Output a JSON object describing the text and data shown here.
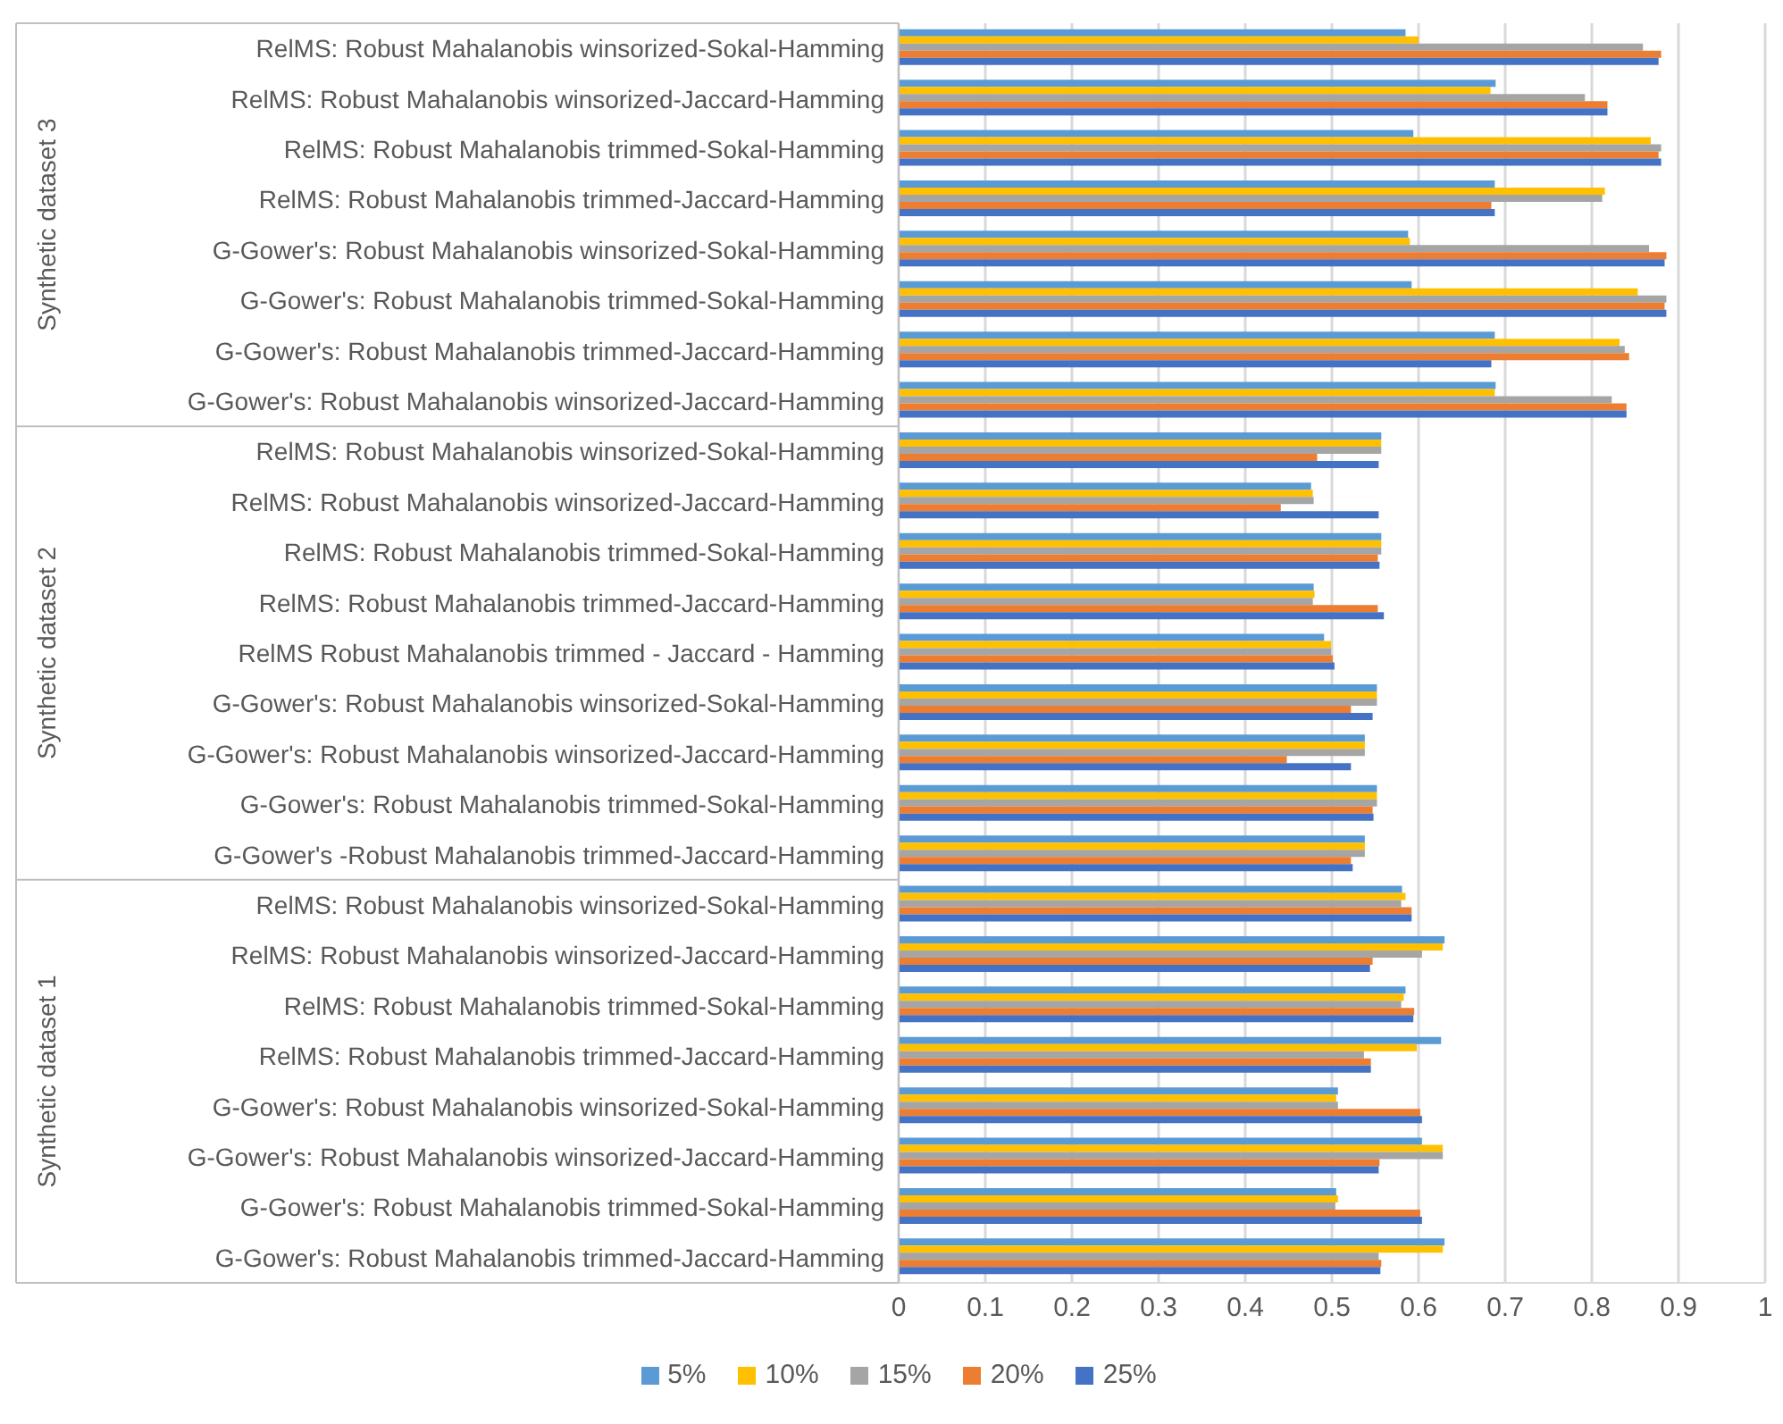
{
  "chart_data": {
    "type": "bar",
    "orientation": "horizontal",
    "categories": [
      "RelMS: Robust Mahalanobis winsorized-Sokal-Hamming",
      "RelMS: Robust Mahalanobis winsorized-Jaccard-Hamming",
      "RelMS: Robust Mahalanobis trimmed-Sokal-Hamming",
      "RelMS: Robust Mahalanobis trimmed-Jaccard-Hamming",
      "G-Gower's: Robust Mahalanobis winsorized-Sokal-Hamming",
      "G-Gower's: Robust Mahalanobis trimmed-Sokal-Hamming",
      "G-Gower's: Robust Mahalanobis trimmed-Jaccard-Hamming",
      "G-Gower's: Robust Mahalanobis winsorized-Jaccard-Hamming",
      "RelMS: Robust Mahalanobis winsorized-Sokal-Hamming",
      "RelMS: Robust Mahalanobis winsorized-Jaccard-Hamming",
      "RelMS: Robust Mahalanobis trimmed-Sokal-Hamming",
      "RelMS: Robust Mahalanobis trimmed-Jaccard-Hamming",
      "RelMS Robust Mahalanobis trimmed - Jaccard - Hamming",
      "G-Gower's: Robust Mahalanobis winsorized-Sokal-Hamming",
      "G-Gower's: Robust Mahalanobis winsorized-Jaccard-Hamming",
      "G-Gower's: Robust Mahalanobis trimmed-Sokal-Hamming",
      "G-Gower's -Robust Mahalanobis trimmed-Jaccard-Hamming",
      "RelMS: Robust Mahalanobis winsorized-Sokal-Hamming",
      "RelMS: Robust Mahalanobis winsorized-Jaccard-Hamming",
      "RelMS: Robust Mahalanobis trimmed-Sokal-Hamming",
      "RelMS: Robust Mahalanobis trimmed-Jaccard-Hamming",
      "G-Gower's: Robust Mahalanobis winsorized-Sokal-Hamming",
      "G-Gower's: Robust Mahalanobis winsorized-Jaccard-Hamming",
      "G-Gower's: Robust Mahalanobis trimmed-Sokal-Hamming",
      "G-Gower's: Robust Mahalanobis trimmed-Jaccard-Hamming"
    ],
    "series": [
      {
        "name": "5%",
        "color": "#5b9bd5",
        "values": [
          0.585,
          0.689,
          0.594,
          0.688,
          0.588,
          0.592,
          0.688,
          0.689,
          0.557,
          0.476,
          0.557,
          0.479,
          0.491,
          0.552,
          0.538,
          0.552,
          0.538,
          0.581,
          0.63,
          0.585,
          0.626,
          0.507,
          0.604,
          0.505,
          0.63
        ]
      },
      {
        "name": "10%",
        "color": "#ffc000",
        "values": [
          0.6,
          0.683,
          0.868,
          0.815,
          0.59,
          0.853,
          0.832,
          0.688,
          0.557,
          0.478,
          0.557,
          0.48,
          0.499,
          0.552,
          0.538,
          0.552,
          0.538,
          0.585,
          0.628,
          0.583,
          0.598,
          0.505,
          0.628,
          0.507,
          0.628
        ]
      },
      {
        "name": "15%",
        "color": "#a5a5a5",
        "values": [
          0.859,
          0.792,
          0.88,
          0.812,
          0.866,
          0.886,
          0.838,
          0.823,
          0.557,
          0.479,
          0.557,
          0.478,
          0.499,
          0.552,
          0.538,
          0.552,
          0.538,
          0.58,
          0.604,
          0.58,
          0.537,
          0.507,
          0.628,
          0.504,
          0.554
        ]
      },
      {
        "name": "20%",
        "color": "#ed7d31",
        "values": [
          0.88,
          0.818,
          0.877,
          0.684,
          0.886,
          0.884,
          0.843,
          0.84,
          0.483,
          0.441,
          0.553,
          0.553,
          0.501,
          0.522,
          0.448,
          0.547,
          0.522,
          0.592,
          0.547,
          0.595,
          0.545,
          0.602,
          0.555,
          0.602,
          0.557
        ]
      },
      {
        "name": "25%",
        "color": "#4472c4",
        "values": [
          0.877,
          0.818,
          0.88,
          0.688,
          0.884,
          0.886,
          0.684,
          0.84,
          0.554,
          0.554,
          0.555,
          0.56,
          0.503,
          0.547,
          0.522,
          0.548,
          0.524,
          0.592,
          0.544,
          0.594,
          0.545,
          0.604,
          0.554,
          0.604,
          0.556
        ]
      }
    ],
    "xlim": [
      0,
      1
    ],
    "xticks": [
      0,
      0.1,
      0.2,
      0.3,
      0.4,
      0.5,
      0.6,
      0.7,
      0.8,
      0.9,
      1
    ],
    "grid": "x",
    "legend": "bottom",
    "annotations": [
      "Synthetic dataset 3",
      "Synthetic dataset 2",
      "Synthetic dataset 1"
    ]
  }
}
